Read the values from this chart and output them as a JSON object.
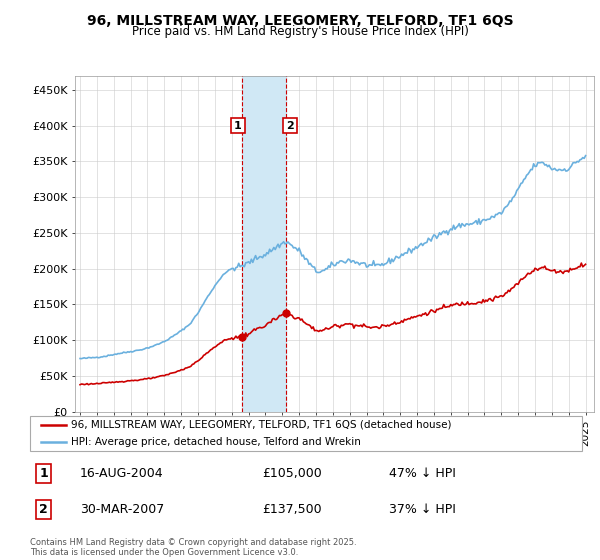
{
  "title": "96, MILLSTREAM WAY, LEEGOMERY, TELFORD, TF1 6QS",
  "subtitle": "Price paid vs. HM Land Registry's House Price Index (HPI)",
  "ylim": [
    0,
    470000
  ],
  "yticks": [
    0,
    50000,
    100000,
    150000,
    200000,
    250000,
    300000,
    350000,
    400000,
    450000
  ],
  "ytick_labels": [
    "£0",
    "£50K",
    "£100K",
    "£150K",
    "£200K",
    "£250K",
    "£300K",
    "£350K",
    "£400K",
    "£450K"
  ],
  "sale1_year": 2004.625,
  "sale1_price": 105000,
  "sale1_label": "16-AUG-2004",
  "sale1_pct": "47% ↓ HPI",
  "sale2_year": 2007.208,
  "sale2_price": 137500,
  "sale2_label": "30-MAR-2007",
  "sale2_pct": "37% ↓ HPI",
  "hpi_color": "#6ab0de",
  "price_color": "#cc0000",
  "shade_color": "#d0e8f5",
  "vline_color": "#cc0000",
  "legend_label_price": "96, MILLSTREAM WAY, LEEGOMERY, TELFORD, TF1 6QS (detached house)",
  "legend_label_hpi": "HPI: Average price, detached house, Telford and Wrekin",
  "footer": "Contains HM Land Registry data © Crown copyright and database right 2025.\nThis data is licensed under the Open Government Licence v3.0.",
  "xlim_left": 1994.7,
  "xlim_right": 2025.5
}
